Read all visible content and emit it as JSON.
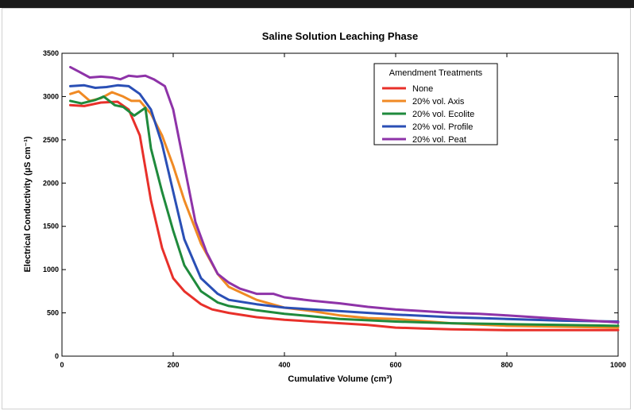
{
  "chart_data": {
    "type": "line",
    "title": "Saline Solution Leaching Phase",
    "xlabel": "Cumulative Volume (cm³)",
    "ylabel": "Electrical Conductivity (µS cm⁻¹)",
    "xlim": [
      0,
      1000
    ],
    "ylim": [
      0,
      3500
    ],
    "x_ticks": [
      0,
      200,
      400,
      600,
      800,
      1000
    ],
    "y_ticks": [
      0,
      500,
      1000,
      1500,
      2000,
      2500,
      3000,
      3500
    ],
    "grid": false,
    "legend": {
      "title": "Amendment Treatments",
      "placement": "top-right"
    },
    "series": [
      {
        "name": "None",
        "color": "#e8302a",
        "x": [
          15,
          40,
          70,
          100,
          120,
          140,
          160,
          180,
          200,
          220,
          250,
          270,
          300,
          350,
          400,
          450,
          500,
          550,
          600,
          650,
          700,
          800,
          900,
          1000
        ],
        "y": [
          2900,
          2890,
          2930,
          2940,
          2850,
          2550,
          1800,
          1250,
          900,
          750,
          600,
          540,
          500,
          450,
          420,
          400,
          380,
          360,
          330,
          320,
          310,
          300,
          300,
          300
        ]
      },
      {
        "name": "20% vol. Axis",
        "color": "#f08a24",
        "x": [
          15,
          30,
          50,
          70,
          90,
          110,
          125,
          140,
          160,
          180,
          200,
          220,
          250,
          280,
          300,
          350,
          400,
          450,
          500,
          550,
          600,
          700,
          800,
          900,
          1000
        ],
        "y": [
          3030,
          3060,
          2950,
          2980,
          3050,
          3000,
          2950,
          2950,
          2800,
          2550,
          2200,
          1800,
          1300,
          950,
          800,
          650,
          560,
          520,
          470,
          440,
          430,
          380,
          350,
          340,
          330
        ]
      },
      {
        "name": "20% vol. Ecolite",
        "color": "#1f8a3c",
        "x": [
          15,
          35,
          60,
          75,
          95,
          110,
          130,
          150,
          160,
          180,
          200,
          220,
          250,
          280,
          300,
          350,
          400,
          450,
          500,
          600,
          700,
          800,
          900,
          1000
        ],
        "y": [
          2950,
          2920,
          2960,
          3000,
          2900,
          2880,
          2780,
          2870,
          2400,
          1900,
          1450,
          1050,
          750,
          620,
          580,
          530,
          490,
          460,
          430,
          400,
          380,
          370,
          360,
          350
        ]
      },
      {
        "name": "20% vol. Profile",
        "color": "#2a4fb5",
        "x": [
          15,
          40,
          60,
          80,
          100,
          120,
          140,
          160,
          180,
          200,
          220,
          250,
          280,
          300,
          350,
          400,
          450,
          500,
          600,
          700,
          800,
          900,
          1000
        ],
        "y": [
          3120,
          3130,
          3100,
          3110,
          3130,
          3120,
          3030,
          2850,
          2450,
          1900,
          1350,
          900,
          720,
          650,
          600,
          560,
          540,
          520,
          480,
          450,
          430,
          410,
          400
        ]
      },
      {
        "name": "20% vol. Peat",
        "color": "#8e33a8",
        "x": [
          15,
          30,
          50,
          70,
          90,
          105,
          120,
          135,
          150,
          165,
          185,
          200,
          220,
          240,
          260,
          280,
          300,
          320,
          350,
          380,
          400,
          450,
          500,
          550,
          600,
          650,
          700,
          750,
          800,
          900,
          1000
        ],
        "y": [
          3340,
          3290,
          3220,
          3230,
          3220,
          3200,
          3240,
          3230,
          3240,
          3200,
          3120,
          2850,
          2200,
          1550,
          1200,
          950,
          850,
          780,
          720,
          720,
          680,
          640,
          610,
          570,
          540,
          520,
          500,
          490,
          470,
          430,
          390
        ]
      }
    ]
  }
}
